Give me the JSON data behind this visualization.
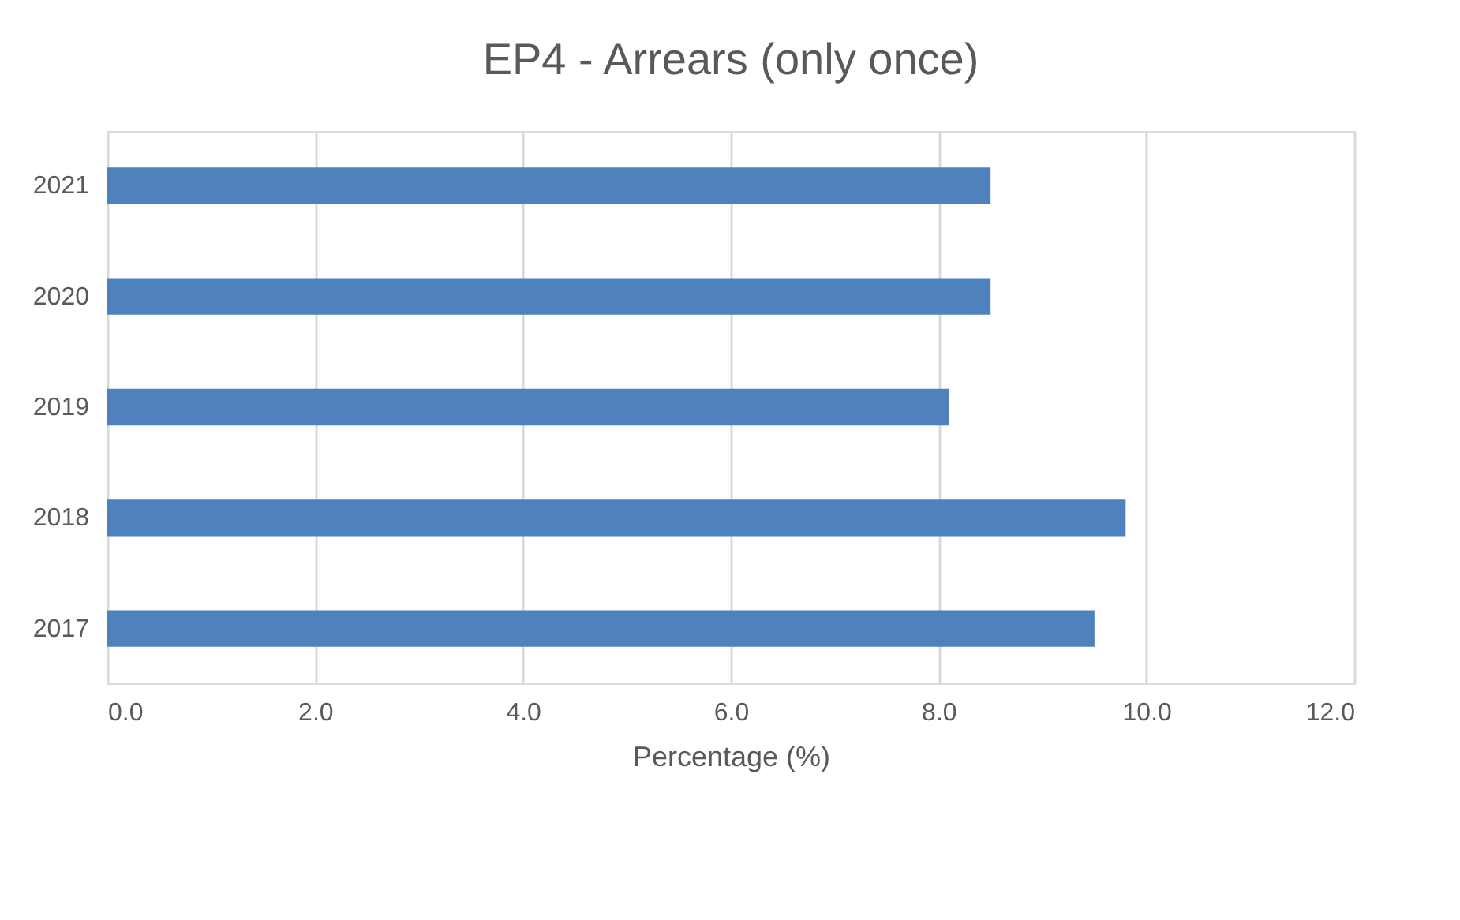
{
  "chart_data": {
    "type": "bar",
    "orientation": "horizontal",
    "title": "EP4 - Arrears (only once)",
    "xlabel": "Percentage (%)",
    "categories": [
      "2021",
      "2020",
      "2019",
      "2018",
      "2017"
    ],
    "values": [
      8.5,
      8.5,
      8.1,
      9.8,
      9.5
    ],
    "color": "#4f81bd",
    "xlim": [
      0,
      12
    ],
    "xticks": [
      {
        "value": 0,
        "label": "0.0"
      },
      {
        "value": 2,
        "label": "2.0"
      },
      {
        "value": 4,
        "label": "4.0"
      },
      {
        "value": 6,
        "label": "6.0"
      },
      {
        "value": 8,
        "label": "8.0"
      },
      {
        "value": 10,
        "label": "10.0"
      },
      {
        "value": 12,
        "label": "12.0"
      }
    ],
    "grid": "x"
  }
}
